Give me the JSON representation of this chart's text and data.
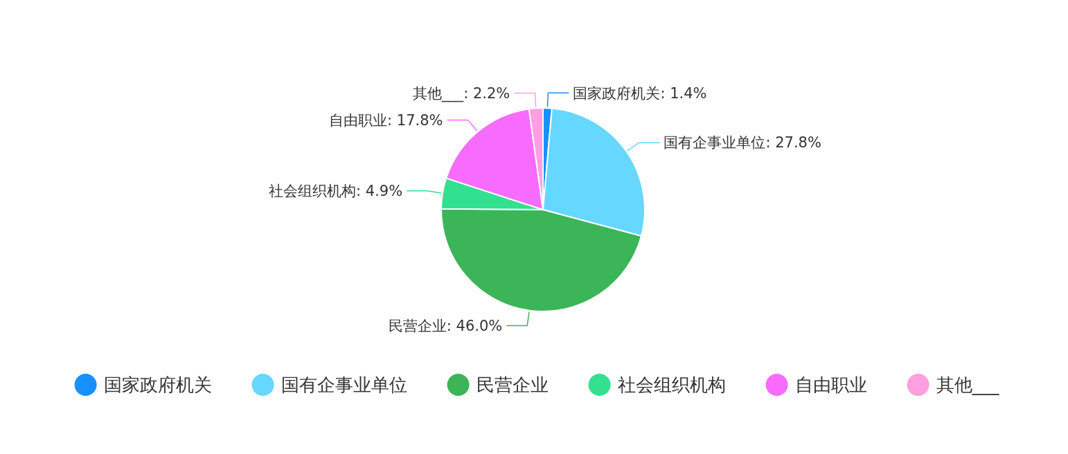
{
  "chart_data": {
    "type": "pie",
    "categories": [
      "国家政府机关",
      "国有企事业单位",
      "民营企业",
      "社会组织机构",
      "自由职业",
      "其他___"
    ],
    "values": [
      1.4,
      27.8,
      46.0,
      4.9,
      17.8,
      2.2
    ],
    "value_labels": [
      "国家政府机关: 1.4%",
      "国有企事业单位: 27.8%",
      "民营企业: 46.0%",
      "社会组织机构: 4.9%",
      "自由职业: 17.8%",
      "其他___: 2.2%"
    ],
    "colors": [
      "#1890ff",
      "#66d7ff",
      "#3bb557",
      "#33e090",
      "#f76cff",
      "#ff9fdf"
    ],
    "legend": "bottom"
  }
}
